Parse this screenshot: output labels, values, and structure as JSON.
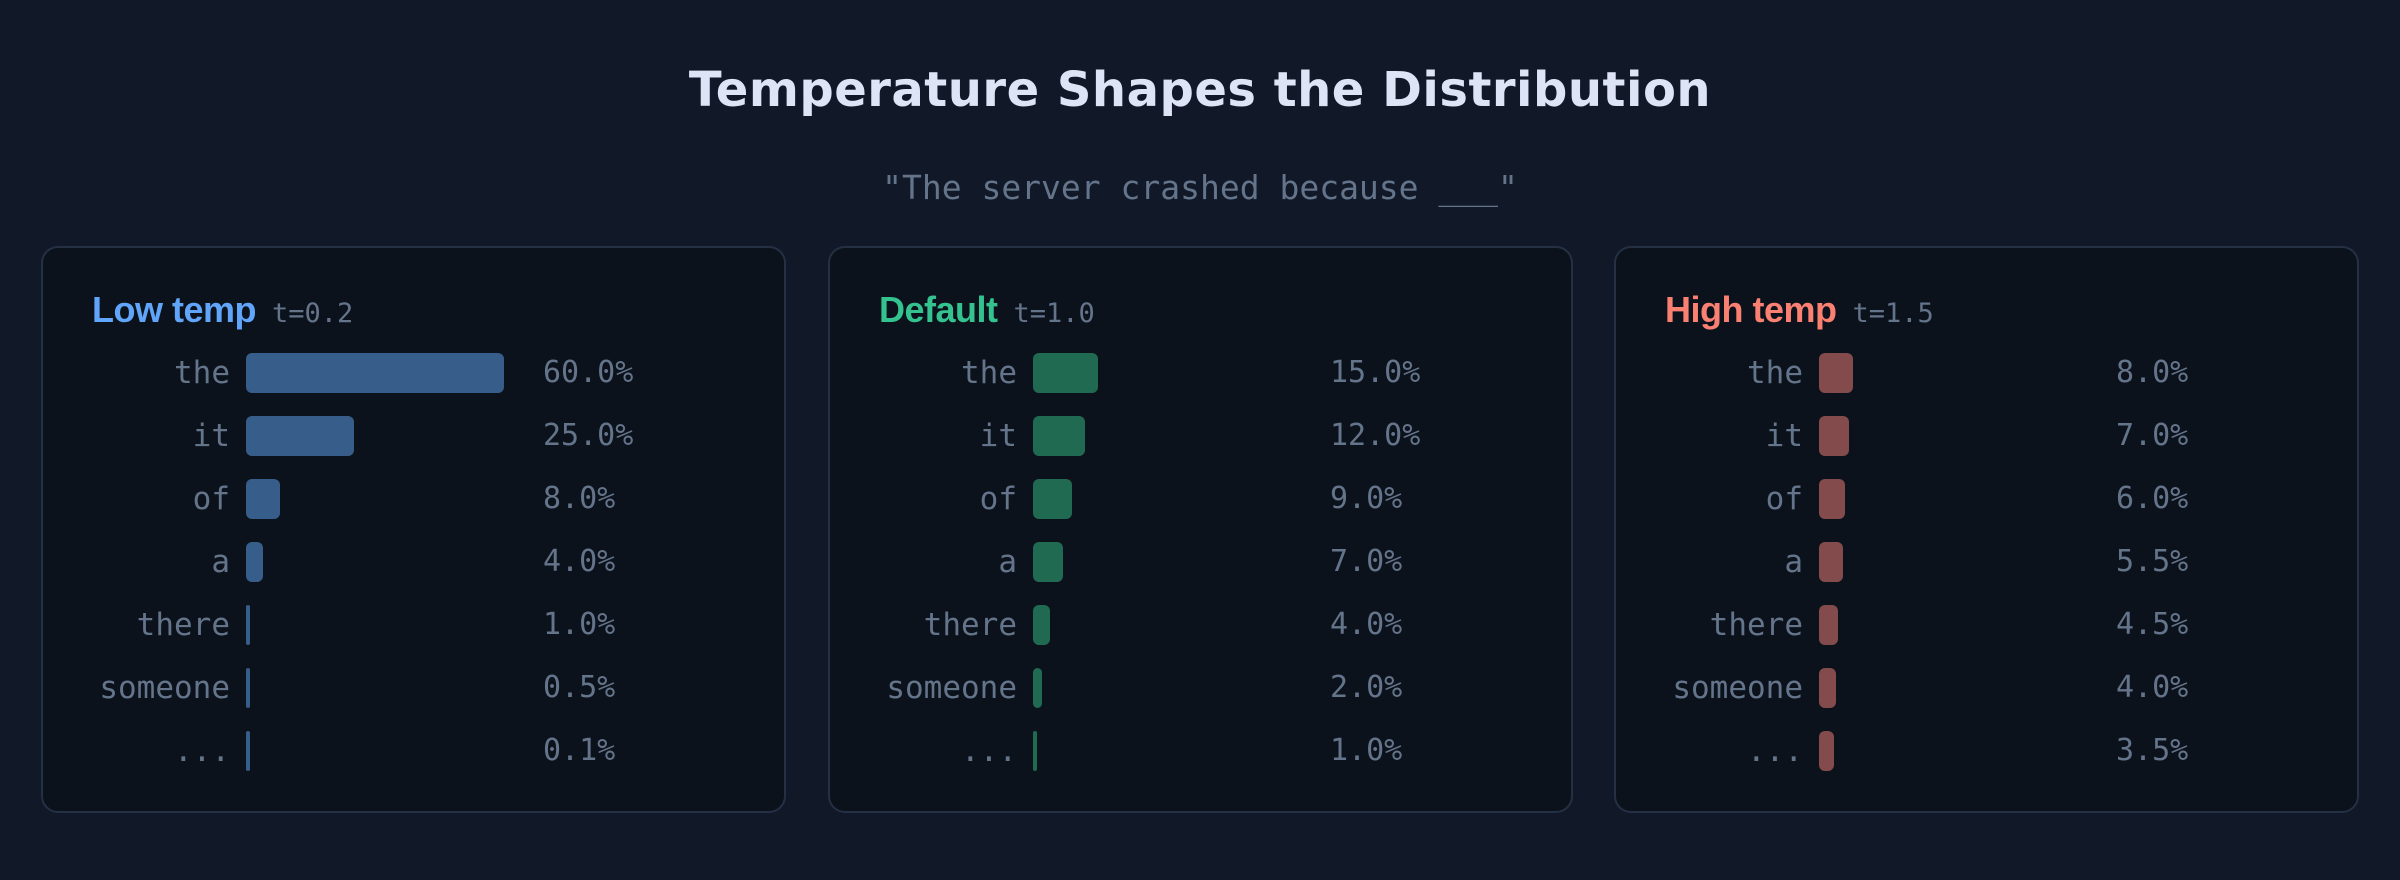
{
  "header": {
    "title": "Temperature Shapes the Distribution",
    "prompt": "\"The server crashed because ___\""
  },
  "panels": [
    {
      "name": "Low temp",
      "temp_label": "t=0.2",
      "accent": "#60a5fa",
      "bar_color": "#375d8a",
      "rows": [
        {
          "token": "the",
          "value": 60.0,
          "label": "60.0%"
        },
        {
          "token": "it",
          "value": 25.0,
          "label": "25.0%"
        },
        {
          "token": "of",
          "value": 8.0,
          "label": "8.0%"
        },
        {
          "token": "a",
          "value": 4.0,
          "label": "4.0%"
        },
        {
          "token": "there",
          "value": 1.0,
          "label": "1.0%"
        },
        {
          "token": "someone",
          "value": 0.5,
          "label": "0.5%"
        },
        {
          "token": "...",
          "value": 0.1,
          "label": "0.1%"
        }
      ]
    },
    {
      "name": "Default",
      "temp_label": "t=1.0",
      "accent": "#34c38f",
      "bar_color": "#216a52",
      "rows": [
        {
          "token": "the",
          "value": 15.0,
          "label": "15.0%"
        },
        {
          "token": "it",
          "value": 12.0,
          "label": "12.0%"
        },
        {
          "token": "of",
          "value": 9.0,
          "label": "9.0%"
        },
        {
          "token": "a",
          "value": 7.0,
          "label": "7.0%"
        },
        {
          "token": "there",
          "value": 4.0,
          "label": "4.0%"
        },
        {
          "token": "someone",
          "value": 2.0,
          "label": "2.0%"
        },
        {
          "token": "...",
          "value": 1.0,
          "label": "1.0%"
        }
      ]
    },
    {
      "name": "High temp",
      "temp_label": "t=1.5",
      "accent": "#fa8072",
      "bar_color": "#834b4b",
      "rows": [
        {
          "token": "the",
          "value": 8.0,
          "label": "8.0%"
        },
        {
          "token": "it",
          "value": 7.0,
          "label": "7.0%"
        },
        {
          "token": "of",
          "value": 6.0,
          "label": "6.0%"
        },
        {
          "token": "a",
          "value": 5.5,
          "label": "5.5%"
        },
        {
          "token": "there",
          "value": 4.5,
          "label": "4.5%"
        },
        {
          "token": "someone",
          "value": 4.0,
          "label": "4.0%"
        },
        {
          "token": "...",
          "value": 3.5,
          "label": "3.5%"
        }
      ]
    }
  ],
  "colors": {
    "background": "#111827",
    "panel_background": "#0c121b",
    "panel_border": "#243044",
    "title": "#dde4f6",
    "muted_text": "#64748b"
  },
  "chart_data": [
    {
      "type": "bar",
      "orientation": "horizontal",
      "title": "Low temp t=0.2",
      "categories": [
        "the",
        "it",
        "of",
        "a",
        "there",
        "someone",
        "..."
      ],
      "values": [
        60.0,
        25.0,
        8.0,
        4.0,
        1.0,
        0.5,
        0.1
      ],
      "value_labels": [
        "60.0%",
        "25.0%",
        "8.0%",
        "4.0%",
        "1.0%",
        "0.5%",
        "0.1%"
      ],
      "unit": "%",
      "color": "#375d8a"
    },
    {
      "type": "bar",
      "orientation": "horizontal",
      "title": "Default t=1.0",
      "categories": [
        "the",
        "it",
        "of",
        "a",
        "there",
        "someone",
        "..."
      ],
      "values": [
        15.0,
        12.0,
        9.0,
        7.0,
        4.0,
        2.0,
        1.0
      ],
      "value_labels": [
        "15.0%",
        "12.0%",
        "9.0%",
        "7.0%",
        "4.0%",
        "2.0%",
        "1.0%"
      ],
      "unit": "%",
      "color": "#216a52"
    },
    {
      "type": "bar",
      "orientation": "horizontal",
      "title": "High temp t=1.5",
      "categories": [
        "the",
        "it",
        "of",
        "a",
        "there",
        "someone",
        "..."
      ],
      "values": [
        8.0,
        7.0,
        6.0,
        5.5,
        4.5,
        4.0,
        3.5
      ],
      "value_labels": [
        "8.0%",
        "7.0%",
        "6.0%",
        "5.5%",
        "4.5%",
        "4.0%",
        "3.5%"
      ],
      "unit": "%",
      "color": "#834b4b"
    }
  ]
}
